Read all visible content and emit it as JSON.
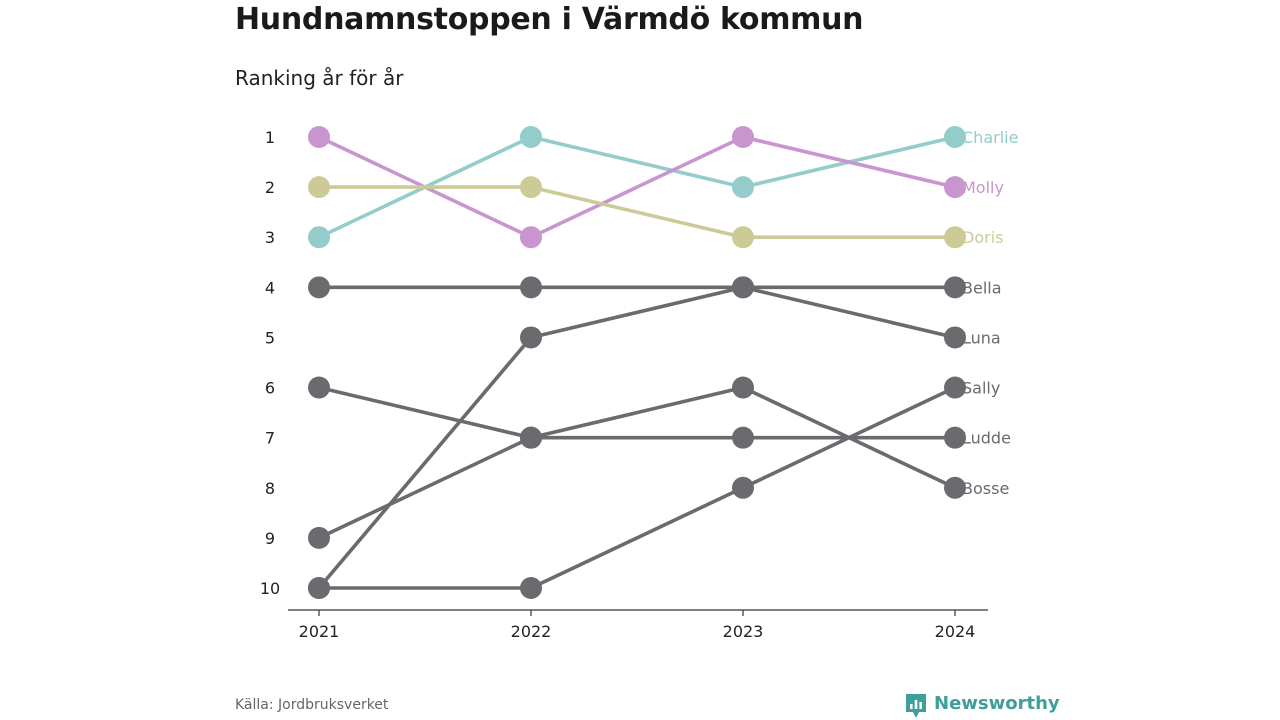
{
  "title": "Hundnamnstoppen i Värmdö kommun",
  "subtitle": "Ranking år för år",
  "source": "Källa: Jordbruksverket",
  "brand": {
    "name": "Newsworthy",
    "color": "#3d9e9a",
    "icon": "newsworthy-logo-icon"
  },
  "chart_data": {
    "type": "line",
    "subtype": "bump",
    "title": "Hundnamnstoppen i Värmdö kommun",
    "subtitle": "Ranking år för år",
    "x": [
      "2021",
      "2022",
      "2023",
      "2024"
    ],
    "y_ticks": [
      "1",
      "2",
      "3",
      "4",
      "5",
      "6",
      "7",
      "8",
      "9",
      "10"
    ],
    "ylim": [
      1,
      10
    ],
    "y_inverted": true,
    "grid": false,
    "highlight_colors": {
      "Charlie": "#93cccb",
      "Molly": "#c895cf",
      "Doris": "#cccb98",
      "other": "#6b6a6f"
    },
    "series": [
      {
        "name": "Charlie",
        "values": [
          3,
          1,
          2,
          1
        ],
        "color": "#93cccb"
      },
      {
        "name": "Molly",
        "values": [
          1,
          3,
          1,
          2
        ],
        "color": "#c895cf"
      },
      {
        "name": "Doris",
        "values": [
          2,
          2,
          3,
          3
        ],
        "color": "#cccb98"
      },
      {
        "name": "Bella",
        "values": [
          4,
          4,
          4,
          4
        ],
        "color": "#6b6a6f"
      },
      {
        "name": "Luna",
        "values": [
          10,
          5,
          4,
          5
        ],
        "color": "#6b6a6f"
      },
      {
        "name": "Sally",
        "values": [
          10,
          10,
          8,
          6
        ],
        "color": "#6b6a6f"
      },
      {
        "name": "Ludde",
        "values": [
          6,
          7,
          7,
          7
        ],
        "color": "#6b6a6f"
      },
      {
        "name": "Bosse",
        "values": [
          9,
          7,
          6,
          8
        ],
        "color": "#6b6a6f"
      }
    ]
  }
}
